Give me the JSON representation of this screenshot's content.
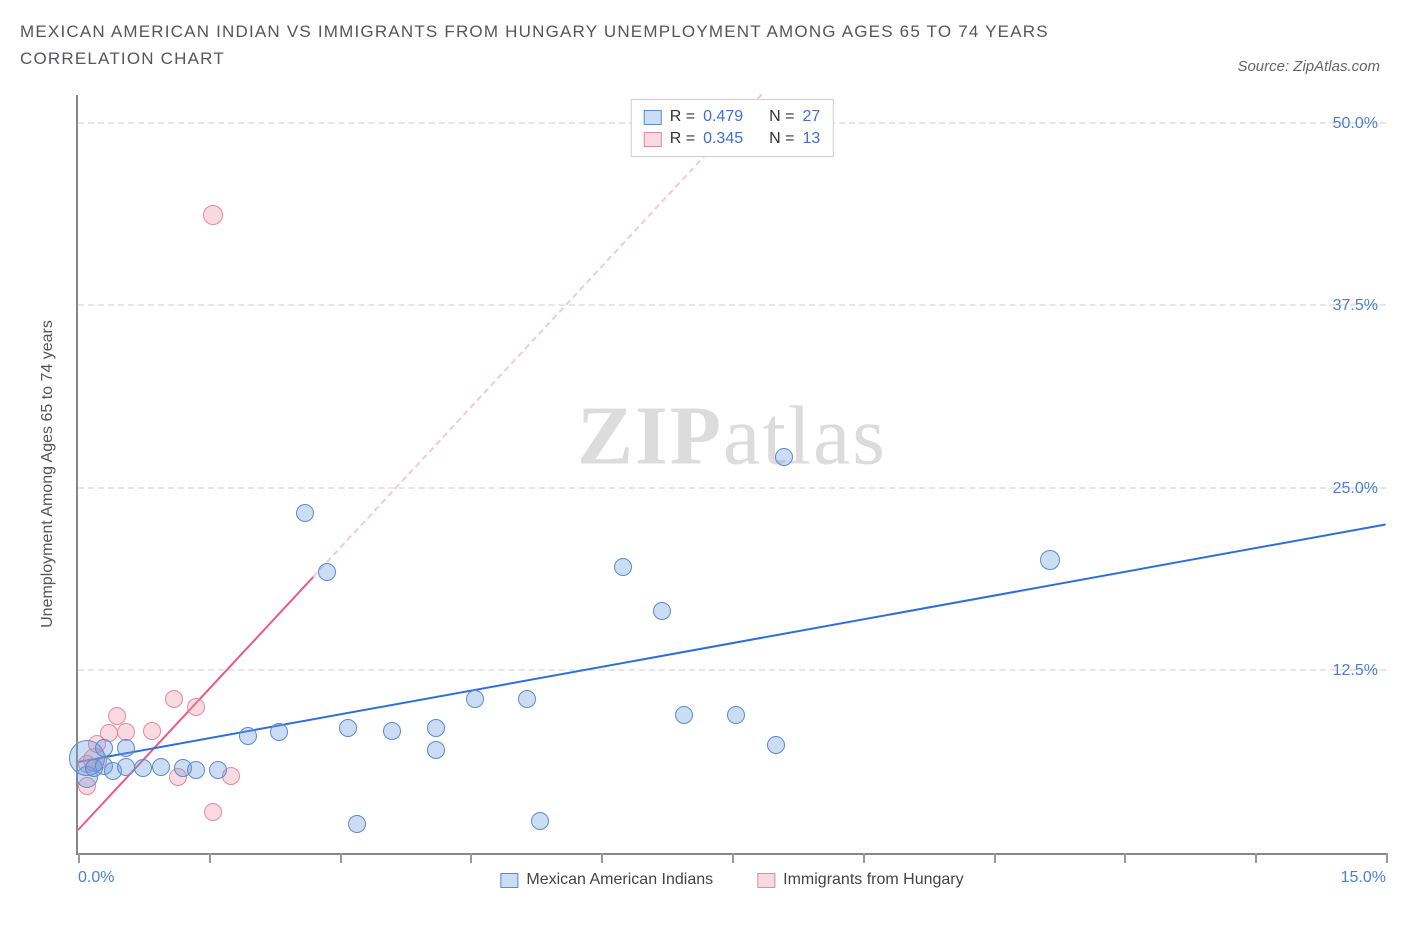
{
  "title": "MEXICAN AMERICAN INDIAN VS IMMIGRANTS FROM HUNGARY UNEMPLOYMENT AMONG AGES 65 TO 74 YEARS CORRELATION CHART",
  "source": "Source: ZipAtlas.com",
  "watermark": {
    "bold": "ZIP",
    "rest": "atlas"
  },
  "yaxis_label": "Unemployment Among Ages 65 to 74 years",
  "chart": {
    "type": "scatter",
    "xlim": [
      0,
      15
    ],
    "ylim": [
      0,
      52
    ],
    "yticks": [
      {
        "v": 12.5,
        "label": "12.5%"
      },
      {
        "v": 25.0,
        "label": "25.0%"
      },
      {
        "v": 37.5,
        "label": "37.5%"
      },
      {
        "v": 50.0,
        "label": "50.0%"
      }
    ],
    "xticks": [
      0,
      1.5,
      3.0,
      4.5,
      6.0,
      7.5,
      9.0,
      10.5,
      12.0,
      13.5,
      15.0
    ],
    "xtick_labels": [
      {
        "v": 0,
        "label": "0.0%"
      },
      {
        "v": 15,
        "label": "15.0%"
      }
    ],
    "background_color": "#ffffff",
    "grid_color": "#e6e6e6",
    "axis_color": "#888888",
    "tick_label_color": "#4a7fd8"
  },
  "series": {
    "a": {
      "name": "Mexican American Indians",
      "fill": "rgba(108,155,222,0.35)",
      "stroke": "#5a8bd0",
      "trend_color": "#2f6fd6",
      "trend_dash_color": "#b9cfef",
      "R": "0.479",
      "N": "27",
      "points": [
        {
          "x": 0.1,
          "y": 5.2,
          "r": 11
        },
        {
          "x": 0.1,
          "y": 6.5,
          "r": 18
        },
        {
          "x": 0.18,
          "y": 5.8,
          "r": 9
        },
        {
          "x": 0.3,
          "y": 6.0,
          "r": 9
        },
        {
          "x": 0.3,
          "y": 7.2,
          "r": 9
        },
        {
          "x": 0.4,
          "y": 5.6,
          "r": 9
        },
        {
          "x": 0.55,
          "y": 5.9,
          "r": 9
        },
        {
          "x": 0.55,
          "y": 7.2,
          "r": 9
        },
        {
          "x": 0.75,
          "y": 5.8,
          "r": 9
        },
        {
          "x": 0.95,
          "y": 5.9,
          "r": 9
        },
        {
          "x": 1.2,
          "y": 5.8,
          "r": 9
        },
        {
          "x": 1.35,
          "y": 5.7,
          "r": 9
        },
        {
          "x": 1.6,
          "y": 5.7,
          "r": 9
        },
        {
          "x": 1.95,
          "y": 8.0,
          "r": 9
        },
        {
          "x": 2.3,
          "y": 8.3,
          "r": 9
        },
        {
          "x": 3.1,
          "y": 8.6,
          "r": 9
        },
        {
          "x": 3.2,
          "y": 2.0,
          "r": 9
        },
        {
          "x": 3.6,
          "y": 8.4,
          "r": 9
        },
        {
          "x": 4.1,
          "y": 8.6,
          "r": 9
        },
        {
          "x": 4.1,
          "y": 7.1,
          "r": 9
        },
        {
          "x": 4.55,
          "y": 10.6,
          "r": 9
        },
        {
          "x": 5.15,
          "y": 10.6,
          "r": 9
        },
        {
          "x": 5.3,
          "y": 2.2,
          "r": 9
        },
        {
          "x": 6.25,
          "y": 19.6,
          "r": 9
        },
        {
          "x": 6.7,
          "y": 16.6,
          "r": 9
        },
        {
          "x": 6.95,
          "y": 9.5,
          "r": 9
        },
        {
          "x": 7.55,
          "y": 9.5,
          "r": 9
        },
        {
          "x": 8.0,
          "y": 7.4,
          "r": 9
        },
        {
          "x": 8.1,
          "y": 27.2,
          "r": 9
        },
        {
          "x": 11.15,
          "y": 20.1,
          "r": 10
        },
        {
          "x": 2.6,
          "y": 23.3,
          "r": 9
        },
        {
          "x": 2.85,
          "y": 19.3,
          "r": 9
        }
      ],
      "trend": {
        "y_at_x0": 6.2,
        "y_at_xmax": 22.5,
        "solid_until_x": 15.0
      }
    },
    "b": {
      "name": "Immigrants from Hungary",
      "fill": "rgba(240,150,170,0.35)",
      "stroke": "#e18aa0",
      "trend_color": "#e85a88",
      "trend_dash_color": "#f5c8d4",
      "R": "0.345",
      "N": "13",
      "points": [
        {
          "x": 0.1,
          "y": 4.6,
          "r": 9
        },
        {
          "x": 0.1,
          "y": 6.1,
          "r": 9
        },
        {
          "x": 0.2,
          "y": 6.4,
          "r": 12
        },
        {
          "x": 0.22,
          "y": 7.5,
          "r": 9
        },
        {
          "x": 0.35,
          "y": 8.2,
          "r": 9
        },
        {
          "x": 0.45,
          "y": 9.4,
          "r": 9
        },
        {
          "x": 0.55,
          "y": 8.3,
          "r": 9
        },
        {
          "x": 0.85,
          "y": 8.4,
          "r": 9
        },
        {
          "x": 1.1,
          "y": 10.6,
          "r": 9
        },
        {
          "x": 1.15,
          "y": 5.2,
          "r": 9
        },
        {
          "x": 1.35,
          "y": 10.0,
          "r": 9
        },
        {
          "x": 1.55,
          "y": 2.8,
          "r": 9
        },
        {
          "x": 1.75,
          "y": 5.3,
          "r": 9
        },
        {
          "x": 1.55,
          "y": 43.8,
          "r": 10
        }
      ],
      "trend": {
        "y_at_x0": 1.5,
        "y_at_xmax": 98.0,
        "solid_until_x": 2.7
      }
    }
  },
  "legend_labels": {
    "R": "R =",
    "N": "N ="
  }
}
